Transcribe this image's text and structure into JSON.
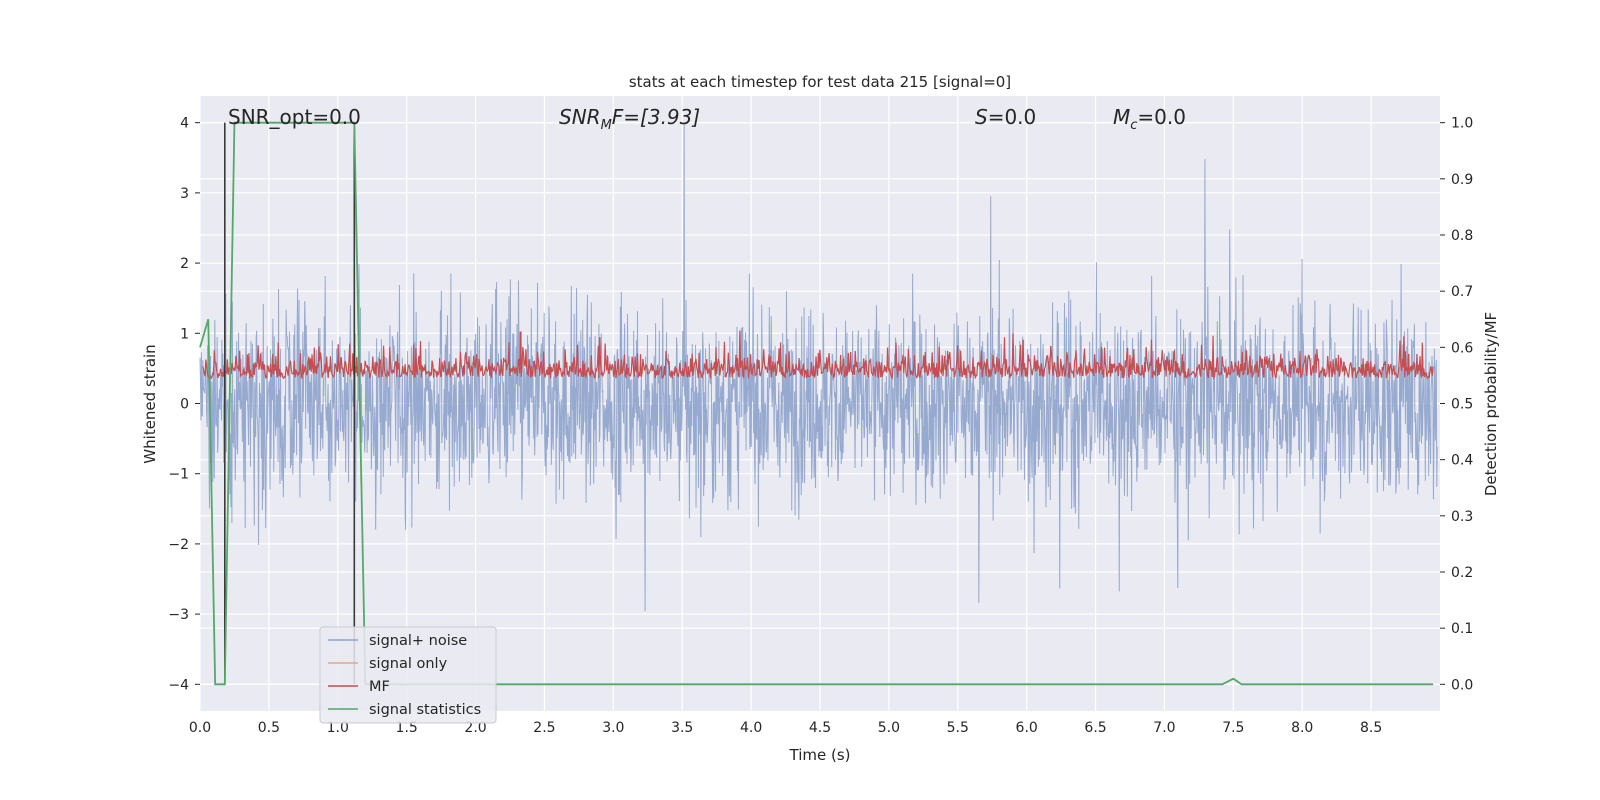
{
  "chart_data": {
    "type": "line",
    "title": "stats at each timestep for test data 215 [signal=0]",
    "xlabel": "Time (s)",
    "ylabel": "Whitened strain",
    "y2label": "Detection probability/MF",
    "xlim": [
      0,
      9.0
    ],
    "ylim": [
      -4.38,
      4.38
    ],
    "y2lim": [
      -0.0475,
      1.0475
    ],
    "xticks": [
      "0.0",
      "0.5",
      "1.0",
      "1.5",
      "2.0",
      "2.5",
      "3.0",
      "3.5",
      "4.0",
      "4.5",
      "5.0",
      "5.5",
      "6.0",
      "6.5",
      "7.0",
      "7.5",
      "8.0",
      "8.5"
    ],
    "yticks": [
      "4",
      "3",
      "2",
      "1",
      "0",
      "−1",
      "−2",
      "−3",
      "−4"
    ],
    "y2ticks": [
      "1.0",
      "0.9",
      "0.8",
      "0.7",
      "0.6",
      "0.5",
      "0.4",
      "0.3",
      "0.2",
      "0.1",
      "0.0"
    ],
    "grid": true,
    "legend_position": "lower-left",
    "annotations": {
      "snr_opt": "SNR_opt=0.0",
      "snr_mf_main": "SNR",
      "snr_mf_sub": "M",
      "snr_mf_tail": "F=[3.93]",
      "s_main": "S",
      "s_tail": "=0.0",
      "mc_main": "M",
      "mc_sub": "c",
      "mc_tail": "=0.0"
    },
    "series": [
      {
        "name": "signal+ noise",
        "color": "#8da2cb",
        "description_values": "whitened noise, approx. range [-4.0, 4.0]"
      },
      {
        "name": "signal only",
        "color": "#e8a488",
        "values": []
      },
      {
        "name": "MF",
        "color": "#c44e52"
      },
      {
        "name": "signal statistics",
        "color": "#55a868",
        "x": [
          0.0,
          0.06,
          0.11,
          0.18,
          0.25,
          1.12,
          1.16,
          1.2,
          7.42,
          7.5,
          7.56,
          8.95
        ],
        "values": [
          0.6,
          0.65,
          0.0,
          0.0,
          1.0,
          1.0,
          0.5,
          0.0,
          0.0,
          0.01,
          0.0,
          0.0
        ]
      }
    ],
    "vlines": [
      0.18,
      1.12
    ]
  },
  "colors": {
    "axes_bg": "#eaeaf2",
    "grid": "#ffffff",
    "noise": "#8da2cb",
    "signal_only": "#e8a488",
    "mf": "#c44e52",
    "stats": "#55a868",
    "vline": "#3a3a3a"
  }
}
